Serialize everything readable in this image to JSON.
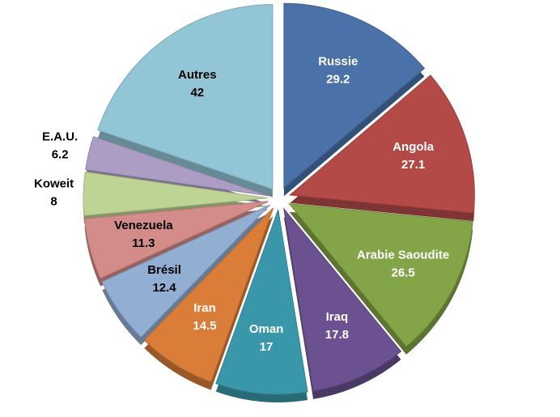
{
  "chart_data": {
    "type": "pie",
    "categories": [
      "Russie",
      "Angola",
      "Arabie Saoudite",
      "Iraq",
      "Oman",
      "Iran",
      "Brésil",
      "Venezuela",
      "Koweit",
      "E.A.U.",
      "Autres"
    ],
    "values": [
      29.2,
      27.1,
      26.5,
      17.8,
      17,
      14.5,
      12.4,
      11.3,
      8,
      6.2,
      42
    ],
    "colors": [
      "#4a72a8",
      "#b44a47",
      "#84a448",
      "#6b5190",
      "#3a97aa",
      "#da7d38",
      "#93aed3",
      "#d48c8a",
      "#bed494",
      "#ab9dc4",
      "#92c6d6"
    ]
  }
}
